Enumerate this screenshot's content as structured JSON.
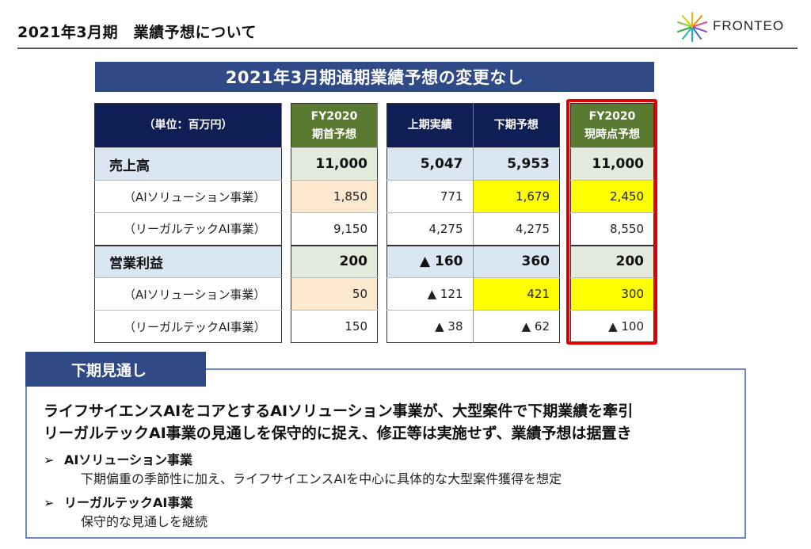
{
  "header": {
    "title": "2021年3月期　業績予想について",
    "logo_text": "FRONTEO"
  },
  "banner": "2021年3月期通期業績予想の変更なし",
  "table": {
    "header_unit": "（単位：百万円）",
    "col_fy2020_initial": [
      "FY2020",
      "期首予想"
    ],
    "col_h1_actual": "上期実績",
    "col_h2_forecast": "下期予想",
    "col_fy2020_current": [
      "FY2020",
      "現時点予想"
    ],
    "rows": [
      {
        "label": "売上高",
        "type": "main",
        "initial": "11,000",
        "h1": "5,047",
        "h2": "5,953",
        "current": "11,000"
      },
      {
        "label": "（AIソリューション事業）",
        "type": "sub",
        "initial": "1,850",
        "h1": "771",
        "h2": "1,679",
        "current": "2,450"
      },
      {
        "label": "（リーガルテックAI事業）",
        "type": "sub",
        "initial": "9,150",
        "h1": "4,275",
        "h2": "4,275",
        "current": "8,550"
      },
      {
        "label": "営業利益",
        "type": "main",
        "initial": "200",
        "h1": "▲ 160",
        "h2": "360",
        "current": "200"
      },
      {
        "label": "（AIソリューション事業）",
        "type": "sub",
        "initial": "50",
        "h1": "▲ 121",
        "h2": "421",
        "current": "300"
      },
      {
        "label": "（リーガルテックAI事業）",
        "type": "sub",
        "initial": "150",
        "h1": "▲ 38",
        "h2": "▲ 62",
        "current": "▲ 100"
      }
    ]
  },
  "outlook": {
    "tab_label": "下期見通し",
    "lead_1": "ライフサイエンスAIをコアとするAIソリューション事業が、大型案件で下期業績を牽引",
    "lead_2": "リーガルテックAI事業の見通しを保守的に捉え、修正等は実施せず、業績予想は据置き",
    "bullet_marker": "➢",
    "items": [
      {
        "title": "AIソリューション事業",
        "desc": "下期偏重の季節性に加え、ライフサイエンスAIを中心に具体的な大型案件獲得を想定"
      },
      {
        "title": "リーガルテックAI事業",
        "desc": "保守的な見通しを継続"
      }
    ]
  },
  "colors": {
    "navy": "#0f1f55",
    "banner_blue": "#2f4a86",
    "green": "#5a7a32",
    "highlight_yellow": "#ffff00",
    "peach": "#fce7cf",
    "red_frame": "#e00000"
  }
}
